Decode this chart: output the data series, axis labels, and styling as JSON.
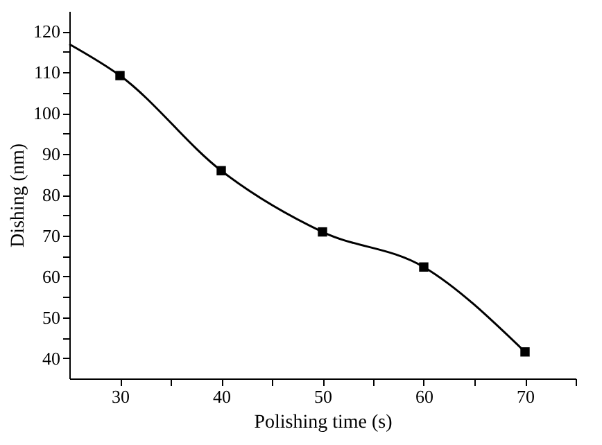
{
  "chart_data": {
    "type": "line",
    "xlabel": "Polishing time (s)",
    "ylabel": "Dishing (nm)",
    "xlim": [
      25,
      75
    ],
    "ylim": [
      35,
      125
    ],
    "xticks": [
      30,
      {
        "value": 35,
        "label": null
      },
      40,
      {
        "value": 45,
        "label": null
      },
      50,
      {
        "value": 55,
        "label": null
      },
      60,
      {
        "value": 65,
        "label": null
      },
      70,
      {
        "value": 75,
        "label": null
      }
    ],
    "yticks": [
      40,
      {
        "value": 45,
        "label": null
      },
      50,
      {
        "value": 55,
        "label": null
      },
      60,
      {
        "value": 65,
        "label": null
      },
      70,
      {
        "value": 75,
        "label": null
      },
      80,
      {
        "value": 85,
        "label": null
      },
      90,
      {
        "value": 95,
        "label": null
      },
      100,
      {
        "value": 105,
        "label": null
      },
      110,
      {
        "value": 115,
        "label": null
      },
      120
    ],
    "grid": false,
    "series": [
      {
        "marker": "none",
        "line_style": "solid",
        "color": "#000000",
        "x": [
          25,
          30,
          40,
          50,
          60,
          70
        ],
        "values": [
          116.9,
          109.2,
          85.9,
          70.9,
          62.3,
          41.5
        ]
      },
      {
        "type": "scatter",
        "marker": "square",
        "color": "#000000",
        "x": [
          30,
          40,
          50,
          60,
          70
        ],
        "values": [
          109.2,
          85.9,
          70.9,
          62.3,
          41.5
        ]
      }
    ]
  }
}
